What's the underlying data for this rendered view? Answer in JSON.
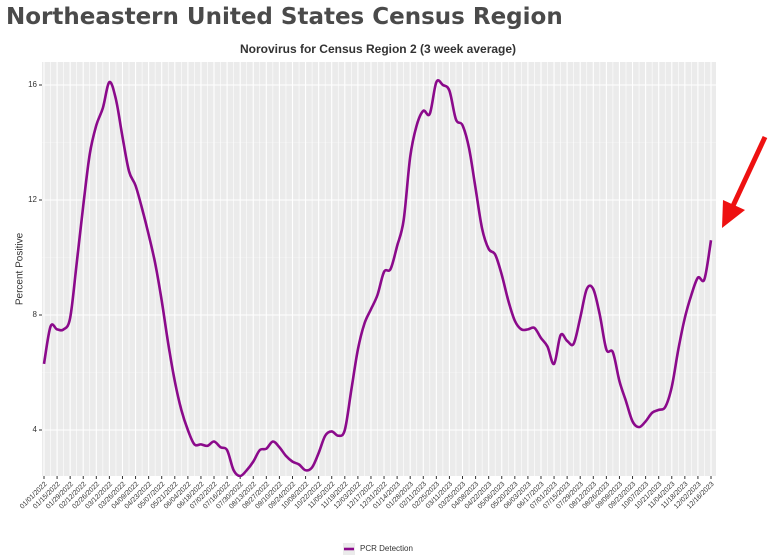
{
  "heading": "Northeastern United States Census Region",
  "chart_data": {
    "type": "line",
    "title": "Norovirus for Census Region 2 (3 week average)",
    "y_label": "Percent Positive",
    "categories": [
      "01/01/2022",
      null,
      "01/15/2022",
      null,
      "01/29/2022",
      null,
      "02/12/2022",
      null,
      "02/26/2022",
      null,
      "03/12/2022",
      null,
      "03/26/2022",
      null,
      "04/09/2022",
      null,
      "04/23/2022",
      null,
      "05/07/2022",
      null,
      "05/21/2022",
      null,
      "06/04/2022",
      null,
      "06/18/2022",
      null,
      "07/02/2022",
      null,
      "07/16/2022",
      null,
      "07/30/2022",
      null,
      "08/13/2022",
      null,
      "08/27/2022",
      null,
      "09/10/2022",
      null,
      "09/24/2022",
      null,
      "10/08/2022",
      null,
      "10/22/2022",
      null,
      "11/05/2022",
      null,
      "11/19/2022",
      null,
      "12/03/2022",
      null,
      "12/17/2022",
      null,
      "12/31/2022",
      null,
      "01/14/2023",
      null,
      "01/28/2023",
      null,
      "02/11/2023",
      null,
      "02/25/2023",
      null,
      "03/11/2023",
      null,
      "03/25/2023",
      null,
      "04/08/2023",
      null,
      "04/22/2023",
      null,
      "05/06/2023",
      null,
      "05/20/2023",
      null,
      "06/03/2023",
      null,
      "06/17/2023",
      null,
      "07/01/2023",
      null,
      "07/15/2023",
      null,
      "07/29/2023",
      null,
      "08/12/2023",
      null,
      "08/26/2023",
      null,
      "09/09/2023",
      null,
      "09/23/2023",
      null,
      "10/07/2023",
      null,
      "10/21/2023",
      null,
      "11/04/2023",
      null,
      "11/18/2023",
      null,
      "12/02/2023",
      null,
      "12/16/2023"
    ],
    "series": [
      {
        "name": "PCR Detection",
        "color": "#8b0a8b",
        "values": [
          6.3,
          7.6,
          7.5,
          7.5,
          7.9,
          9.8,
          11.8,
          13.6,
          14.6,
          15.2,
          16.1,
          15.5,
          14.2,
          13.0,
          12.5,
          11.7,
          10.8,
          9.8,
          8.5,
          7.0,
          5.7,
          4.7,
          4.0,
          3.5,
          3.5,
          3.45,
          3.6,
          3.4,
          3.3,
          2.6,
          2.4,
          2.6,
          2.9,
          3.3,
          3.35,
          3.6,
          3.4,
          3.1,
          2.9,
          2.8,
          2.6,
          2.7,
          3.2,
          3.8,
          3.95,
          3.8,
          4.0,
          5.4,
          6.8,
          7.7,
          8.2,
          8.7,
          9.5,
          9.6,
          10.4,
          11.3,
          13.5,
          14.6,
          15.1,
          15.0,
          16.1,
          16.0,
          15.8,
          14.8,
          14.6,
          13.8,
          12.4,
          11.0,
          10.3,
          10.1,
          9.4,
          8.5,
          7.8,
          7.5,
          7.5,
          7.55,
          7.2,
          6.9,
          6.3,
          7.3,
          7.1,
          7.0,
          7.9,
          8.9,
          8.9,
          8.0,
          6.8,
          6.7,
          5.7,
          5.0,
          4.3,
          4.1,
          4.3,
          4.6,
          4.7,
          4.8,
          5.5,
          6.8,
          7.9,
          8.7,
          9.3,
          9.25,
          10.6
        ]
      }
    ],
    "ylim": [
      2.4,
      16.8
    ],
    "yticks": [
      4,
      8,
      12,
      16
    ],
    "grid": true,
    "legend": "bottom"
  }
}
